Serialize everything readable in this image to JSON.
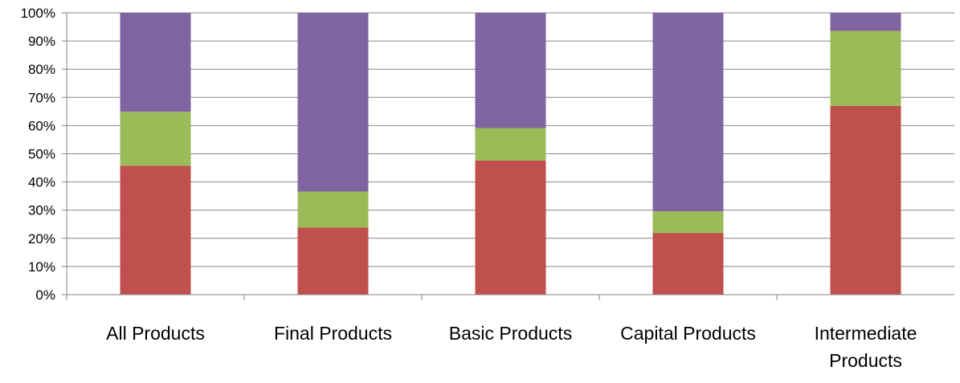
{
  "chart_data": {
    "type": "bar",
    "stacked": true,
    "percent_stacked": true,
    "categories": [
      [
        "All Products"
      ],
      [
        "Final Products"
      ],
      [
        "Basic Products"
      ],
      [
        "Capital Products"
      ],
      [
        "Intermediate",
        "Products"
      ]
    ],
    "series": [
      {
        "color": "#c0504d",
        "values": [
          45.8,
          23.8,
          47.6,
          21.9,
          67.0
        ]
      },
      {
        "color": "#9bbb59",
        "values": [
          19.1,
          12.8,
          11.5,
          7.7,
          26.6
        ]
      },
      {
        "color": "#8064a2",
        "values": [
          35.1,
          63.4,
          40.9,
          70.4,
          6.4
        ]
      }
    ],
    "ylim": [
      0,
      100
    ],
    "yticks": [
      "0%",
      "10%",
      "20%",
      "30%",
      "40%",
      "50%",
      "60%",
      "70%",
      "80%",
      "90%",
      "100%"
    ],
    "grid": true,
    "legend": "none"
  },
  "colors": {
    "grid": "#868686",
    "axis": "#868686"
  }
}
